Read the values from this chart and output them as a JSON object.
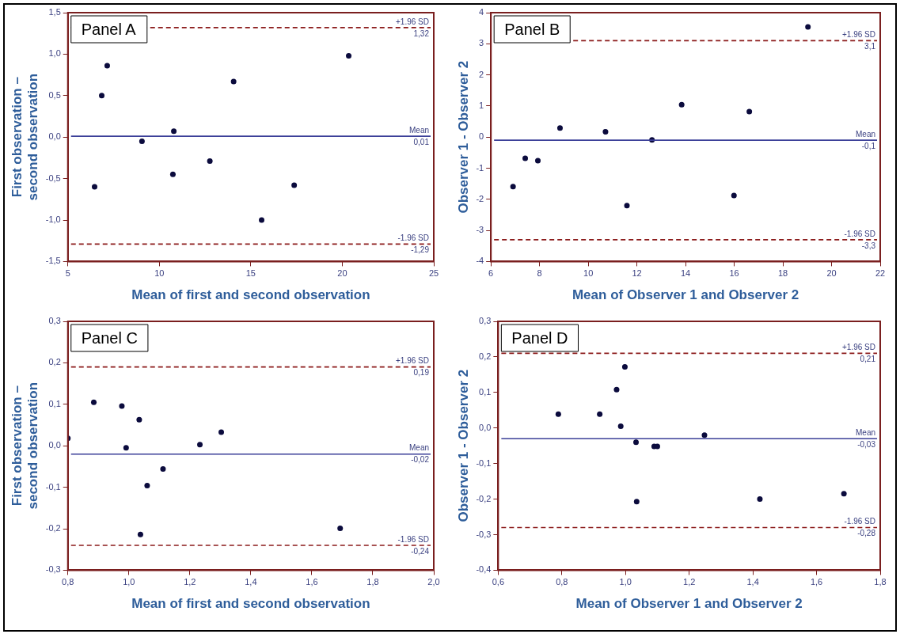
{
  "chart_data": [
    {
      "type": "scatter",
      "title": "Panel A",
      "xlabel": "Mean of first and second observation",
      "ylabel": "First observation –\nsecond observation",
      "color": "#0b0b3d",
      "marker": "circle",
      "grid": false,
      "legend": false,
      "x": [
        6.46,
        6.85,
        7.15,
        9.05,
        10.79,
        10.74,
        12.76,
        14.06,
        15.59,
        17.37,
        20.35
      ],
      "values": [
        -0.6,
        0.5,
        0.86,
        -0.05,
        0.07,
        -0.45,
        -0.29,
        0.67,
        -1.0,
        -0.58,
        0.98
      ],
      "xlim": [
        5,
        25
      ],
      "xticks": [
        5,
        10,
        15,
        20,
        25
      ],
      "ylim": [
        -1.5,
        1.5
      ],
      "yticks": [
        {
          "value": -1.5,
          "label": "-1,5"
        },
        {
          "value": -1,
          "label": "-1,0"
        },
        {
          "value": -0.5,
          "label": "-0,5"
        },
        {
          "value": 0,
          "label": "0,0"
        },
        {
          "value": 0.5,
          "label": "0,5"
        },
        {
          "value": 1,
          "label": "1,0"
        },
        {
          "value": 1.5,
          "label": "1,5"
        }
      ],
      "ref_lines": [
        {
          "axis": "y",
          "value": 1.32,
          "label": "+1.96 SD",
          "color": "#8b1a1a",
          "line_style": "dashed"
        },
        {
          "axis": "y",
          "value": 0.01,
          "label": "Mean",
          "color": "#3b3f98",
          "line_style": "solid"
        },
        {
          "axis": "y",
          "value": -1.29,
          "label": "-1.96 SD",
          "color": "#8b1a1a",
          "line_style": "dashed"
        }
      ],
      "annotations": [
        {
          "text": "1,32",
          "x": 25,
          "y": 1.32
        },
        {
          "text": "0,01",
          "x": 25,
          "y": 0.01
        },
        {
          "text": "-1,29",
          "x": 25,
          "y": -1.29
        }
      ]
    },
    {
      "type": "scatter",
      "title": "Panel B",
      "xlabel": "Mean of Observer 1 and Observer 2",
      "ylabel": "Observer 1 - Observer 2",
      "color": "#0b0b3d",
      "marker": "circle",
      "grid": false,
      "legend": false,
      "x": [
        6.91,
        7.41,
        7.93,
        8.84,
        10.71,
        11.59,
        12.62,
        13.84,
        15.99,
        16.62,
        19.03
      ],
      "values": [
        -1.59,
        -0.68,
        -0.76,
        0.29,
        0.17,
        -2.2,
        -0.09,
        1.04,
        -1.88,
        0.82,
        3.54
      ],
      "xlim": [
        6,
        22
      ],
      "xticks": [
        6,
        8,
        10,
        12,
        14,
        16,
        18,
        20,
        22
      ],
      "ylim": [
        -4,
        4
      ],
      "yticks": [
        -4,
        -3,
        -2,
        -1,
        0,
        1,
        2,
        3,
        4
      ],
      "ref_lines": [
        {
          "axis": "y",
          "value": 3.1,
          "label": "+1.96 SD",
          "color": "#8b1a1a",
          "line_style": "dashed"
        },
        {
          "axis": "y",
          "value": -0.1,
          "label": "Mean",
          "color": "#3b3f98",
          "line_style": "solid"
        },
        {
          "axis": "y",
          "value": -3.3,
          "label": "-1.96 SD",
          "color": "#8b1a1a",
          "line_style": "dashed"
        }
      ],
      "annotations": [
        {
          "text": "3,1",
          "x": 22,
          "y": 3.1
        },
        {
          "text": "-0,1",
          "x": 22,
          "y": -0.1
        },
        {
          "text": "-3,3",
          "x": 22,
          "y": -3.3
        }
      ]
    },
    {
      "type": "scatter",
      "title": "Panel C",
      "xlabel": "Mean of first and second observation",
      "ylabel": "First observation –\nsecond observation",
      "color": "#0b0b3d",
      "marker": "circle",
      "grid": false,
      "legend": false,
      "x": [
        0.8,
        0.885,
        0.977,
        1.034,
        0.991,
        1.233,
        1.303,
        1.112,
        1.06,
        1.038,
        1.693
      ],
      "values": [
        0.018,
        0.105,
        0.096,
        0.063,
        -0.005,
        0.003,
        0.033,
        -0.056,
        -0.096,
        -0.214,
        -0.199
      ],
      "xlim": [
        0.8,
        2.0
      ],
      "xticks": [
        {
          "value": 0.8,
          "label": "0,8"
        },
        {
          "value": 1,
          "label": "1,0"
        },
        {
          "value": 1.2,
          "label": "1,2"
        },
        {
          "value": 1.4,
          "label": "1,4"
        },
        {
          "value": 1.6,
          "label": "1,6"
        },
        {
          "value": 1.8,
          "label": "1,8"
        },
        {
          "value": 2,
          "label": "2,0"
        }
      ],
      "ylim": [
        -0.3,
        0.3
      ],
      "yticks": [
        {
          "value": -0.3,
          "label": "-0,3"
        },
        {
          "value": -0.2,
          "label": "-0,2"
        },
        {
          "value": -0.1,
          "label": "-0,1"
        },
        {
          "value": 0,
          "label": "0,0"
        },
        {
          "value": 0.1,
          "label": "0,1"
        },
        {
          "value": 0.2,
          "label": "0,2"
        },
        {
          "value": 0.3,
          "label": "0,3"
        }
      ],
      "ref_lines": [
        {
          "axis": "y",
          "value": 0.19,
          "label": "+1.96 SD",
          "color": "#8b1a1a",
          "line_style": "dashed"
        },
        {
          "axis": "y",
          "value": -0.02,
          "label": "Mean",
          "color": "#3b3f98",
          "line_style": "solid"
        },
        {
          "axis": "y",
          "value": -0.24,
          "label": "-1.96 SD",
          "color": "#8b1a1a",
          "line_style": "dashed"
        }
      ],
      "annotations": [
        {
          "text": "0,19",
          "x": 2.0,
          "y": 0.19
        },
        {
          "text": "-0,02",
          "x": 2.0,
          "y": -0.02
        },
        {
          "text": "-0,24",
          "x": 2.0,
          "y": -0.24
        }
      ]
    },
    {
      "type": "scatter",
      "title": "Panel D",
      "xlabel": "Mean of Observer 1 and Observer 2",
      "ylabel": "Observer 1 - Observer 2",
      "color": "#0b0b3d",
      "marker": "circle",
      "grid": false,
      "legend": false,
      "x": [
        0.789,
        0.919,
        0.972,
        0.998,
        0.985,
        1.033,
        1.09,
        1.1,
        1.248,
        1.035,
        1.422,
        1.686
      ],
      "values": [
        0.039,
        0.039,
        0.108,
        0.172,
        0.005,
        -0.04,
        -0.052,
        -0.052,
        -0.02,
        -0.207,
        -0.2,
        -0.185
      ],
      "xlim": [
        0.6,
        1.8
      ],
      "xticks": [
        {
          "value": 0.6,
          "label": "0,6"
        },
        {
          "value": 0.8,
          "label": "0,8"
        },
        {
          "value": 1,
          "label": "1,0"
        },
        {
          "value": 1.2,
          "label": "1,2"
        },
        {
          "value": 1.4,
          "label": "1,4"
        },
        {
          "value": 1.6,
          "label": "1,6"
        },
        {
          "value": 1.8,
          "label": "1,8"
        }
      ],
      "ylim": [
        -0.4,
        0.3
      ],
      "yticks": [
        {
          "value": -0.4,
          "label": "-0,4"
        },
        {
          "value": -0.3,
          "label": "-0,3"
        },
        {
          "value": -0.2,
          "label": "-0,2"
        },
        {
          "value": -0.1,
          "label": "-0,1"
        },
        {
          "value": 0,
          "label": "0,0"
        },
        {
          "value": 0.1,
          "label": "0,1"
        },
        {
          "value": 0.2,
          "label": "0,2"
        },
        {
          "value": 0.3,
          "label": "0,3"
        }
      ],
      "ref_lines": [
        {
          "axis": "y",
          "value": 0.21,
          "label": "+1.96 SD",
          "color": "#8b1a1a",
          "line_style": "dashed"
        },
        {
          "axis": "y",
          "value": -0.03,
          "label": "Mean",
          "color": "#3b3f98",
          "line_style": "solid"
        },
        {
          "axis": "y",
          "value": -0.28,
          "label": "-1.96 SD",
          "color": "#8b1a1a",
          "line_style": "dashed"
        }
      ],
      "annotations": [
        {
          "text": "0,21",
          "x": 1.8,
          "y": 0.21
        },
        {
          "text": "-0,03",
          "x": 1.8,
          "y": -0.03
        },
        {
          "text": "-0,28",
          "x": 1.8,
          "y": -0.28
        }
      ]
    }
  ]
}
